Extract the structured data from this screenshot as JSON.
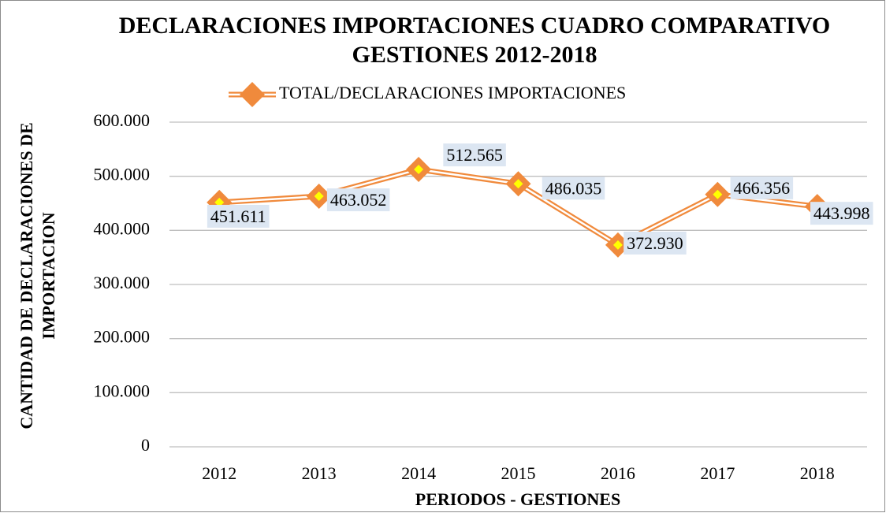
{
  "chart_data": {
    "type": "line",
    "title": [
      "DECLARACIONES IMPORTACIONES CUADRO COMPARATIVO",
      "GESTIONES 2012-2018"
    ],
    "xlabel": "PERIODOS - GESTIONES",
    "ylabel": [
      "CANTIDAD DE DECLARACIONES DE",
      "IMPORTACION"
    ],
    "categories": [
      "2012",
      "2013",
      "2014",
      "2015",
      "2016",
      "2017",
      "2018"
    ],
    "series": [
      {
        "name": "TOTAL/DECLARACIONES IMPORTACIONES",
        "color": "#f08a3c",
        "values": [
          451611,
          463052,
          512565,
          486035,
          372930,
          466356,
          443998
        ],
        "value_labels": [
          "451.611",
          "463.052",
          "512.565",
          "486.035",
          "372.930",
          "466.356",
          "443.998"
        ]
      }
    ],
    "ylim": [
      0,
      600000
    ],
    "yticks": [
      0,
      {
        "value": 100000,
        "label": "100.000"
      },
      {
        "value": 200000,
        "label": "200.000"
      },
      {
        "value": 300000,
        "label": "300.000"
      },
      {
        "value": 400000,
        "label": "400.000"
      },
      {
        "value": 500000,
        "label": "500.000"
      },
      {
        "value": 600000,
        "label": "600.000"
      }
    ],
    "grid": true,
    "legend": "top"
  }
}
